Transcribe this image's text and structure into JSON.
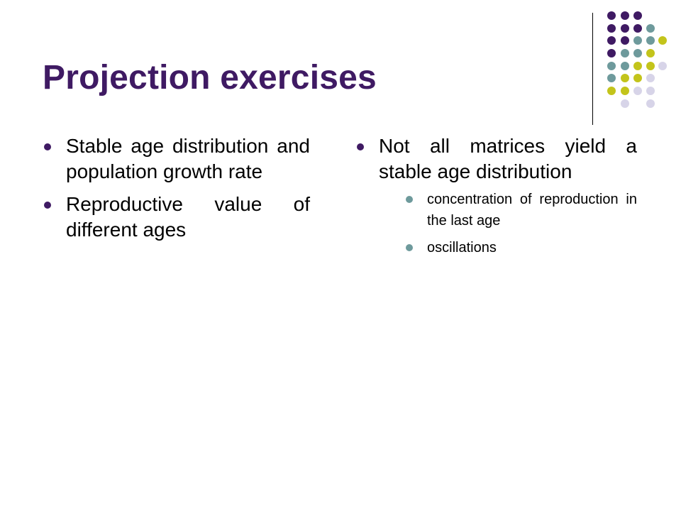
{
  "slide": {
    "title": "Projection exercises",
    "left_bullets": [
      "Stable age distribution and population growth rate",
      "Reproductive value of different ages"
    ],
    "right_bullet": "Not all matrices yield a stable age distribution",
    "right_sub_bullets": [
      "concentration of reproduction in the last age",
      "oscillations"
    ]
  },
  "colors": {
    "title": "#3f1a63",
    "dot_purple": "#3f1a63",
    "dot_teal": "#6e9a9c",
    "dot_olive": "#c3c41b",
    "dot_lavender": "#d7d4e8"
  }
}
